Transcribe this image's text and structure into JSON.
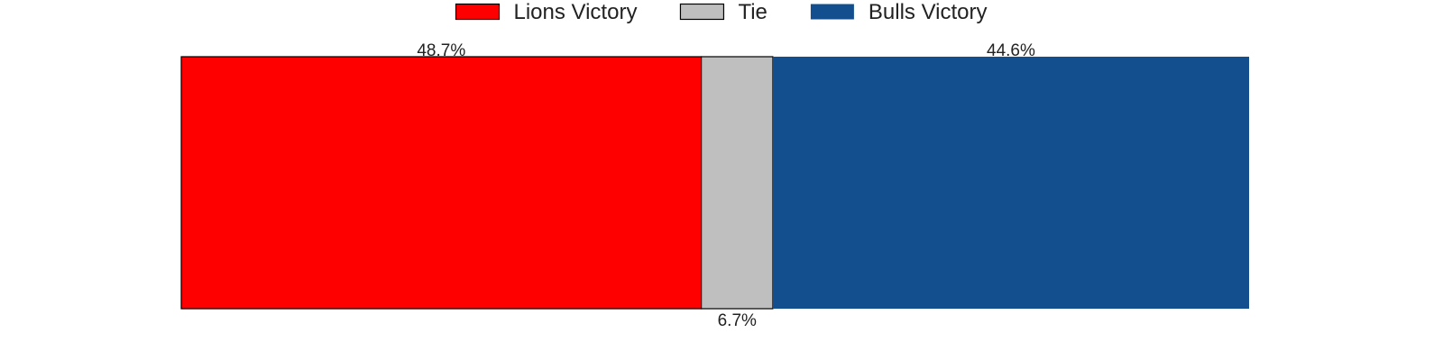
{
  "chart_data": {
    "type": "bar",
    "orientation": "horizontal",
    "stacked": true,
    "categories": [
      ""
    ],
    "series": [
      {
        "name": "Lions Victory",
        "values": [
          48.7
        ],
        "label": "48.7%",
        "color": "#ff0000",
        "label_position": "top"
      },
      {
        "name": "Tie",
        "values": [
          6.7
        ],
        "label": "6.7%",
        "color": "#bfbfbf",
        "label_position": "bottom"
      },
      {
        "name": "Bulls Victory",
        "values": [
          44.6
        ],
        "label": "44.6%",
        "color": "#134f8f",
        "label_position": "top"
      }
    ],
    "title": "",
    "xlabel": "",
    "ylabel": "",
    "xlim": [
      0,
      100
    ],
    "grid": false,
    "axes_visible": false,
    "legend_position": "top-center"
  }
}
